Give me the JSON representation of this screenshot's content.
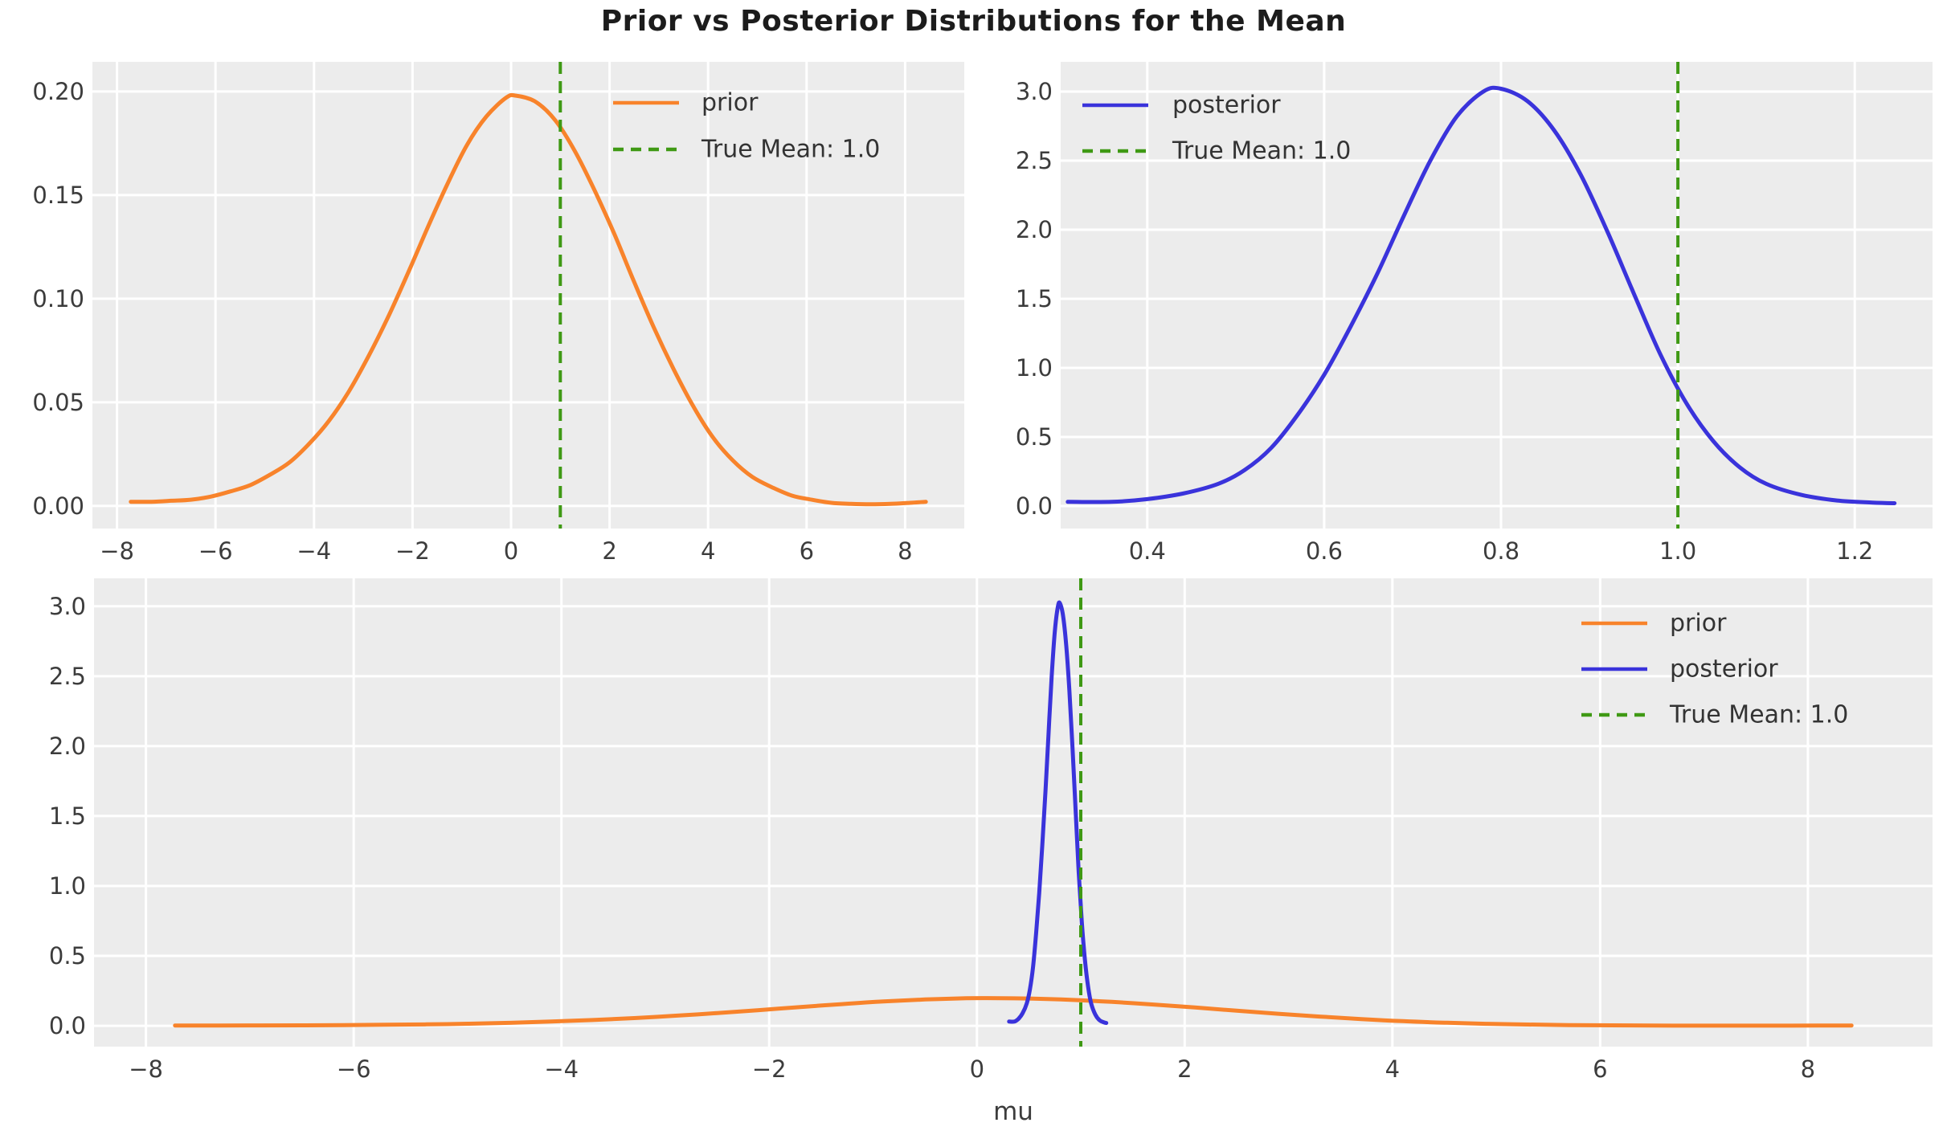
{
  "figure": {
    "title": "Prior vs Posterior Distributions for the Mean",
    "xlabel_bottom": "mu",
    "colors": {
      "prior": "#F8832B",
      "posterior": "#3A33DB",
      "true_mean": "#3F9914",
      "plot_bg": "#ECECEC",
      "grid": "#FFFFFF",
      "tick_text": "#3C3C3C",
      "legend_text": "#333333",
      "title_text": "#1C1C1C"
    }
  },
  "chart_data": [
    {
      "id": "prior-top-left",
      "type": "line",
      "title": "",
      "xlabel": "",
      "ylabel": "",
      "grid": true,
      "xlim": [
        -8.5,
        9.2
      ],
      "ylim": [
        -0.0109,
        0.2143
      ],
      "xticks": {
        "values": [
          -8,
          -6,
          -4,
          -2,
          0,
          2,
          4,
          6,
          8
        ],
        "labels": [
          "−8",
          "−6",
          "−4",
          "−2",
          "0",
          "2",
          "4",
          "6",
          "8"
        ]
      },
      "yticks": {
        "values": [
          0.0,
          0.05,
          0.1,
          0.15,
          0.2
        ],
        "labels": [
          "0.00",
          "0.05",
          "0.10",
          "0.15",
          "0.20"
        ]
      },
      "series": [
        {
          "name": "prior",
          "points_ref": "prior",
          "color_key": "prior"
        }
      ],
      "vline": {
        "x": 1.0,
        "label": "True Mean: 1.0",
        "color_key": "true_mean",
        "style": "dashed"
      },
      "legend": {
        "position": "upper-right",
        "entries": [
          {
            "sample": "line",
            "color_key": "prior",
            "label": "prior"
          },
          {
            "sample": "dashed",
            "color_key": "true_mean",
            "label": "True Mean: 1.0"
          }
        ]
      }
    },
    {
      "id": "posterior-top-right",
      "type": "line",
      "title": "",
      "xlabel": "",
      "ylabel": "",
      "grid": true,
      "xlim": [
        0.302,
        1.288
      ],
      "ylim": [
        -0.163,
        3.215
      ],
      "xticks": {
        "values": [
          0.4,
          0.6,
          0.8,
          1.0,
          1.2
        ],
        "labels": [
          "0.4",
          "0.6",
          "0.8",
          "1.0",
          "1.2"
        ]
      },
      "yticks": {
        "values": [
          0.0,
          0.5,
          1.0,
          1.5,
          2.0,
          2.5,
          3.0
        ],
        "labels": [
          "0.0",
          "0.5",
          "1.0",
          "1.5",
          "2.0",
          "2.5",
          "3.0"
        ]
      },
      "series": [
        {
          "name": "posterior",
          "points_ref": "posterior",
          "color_key": "posterior"
        }
      ],
      "vline": {
        "x": 1.0,
        "label": "True Mean: 1.0",
        "color_key": "true_mean",
        "style": "dashed"
      },
      "legend": {
        "position": "upper-left",
        "entries": [
          {
            "sample": "line",
            "color_key": "posterior",
            "label": "posterior"
          },
          {
            "sample": "dashed",
            "color_key": "true_mean",
            "label": "True Mean: 1.0"
          }
        ]
      }
    },
    {
      "id": "combined-bottom",
      "type": "line",
      "title": "",
      "xlabel": "mu",
      "ylabel": "",
      "grid": true,
      "xlim": [
        -8.5,
        9.2
      ],
      "ylim": [
        -0.149,
        3.2
      ],
      "xticks": {
        "values": [
          -8,
          -6,
          -4,
          -2,
          0,
          2,
          4,
          6,
          8
        ],
        "labels": [
          "−8",
          "−6",
          "−4",
          "−2",
          "0",
          "2",
          "4",
          "6",
          "8"
        ]
      },
      "yticks": {
        "values": [
          0.0,
          0.5,
          1.0,
          1.5,
          2.0,
          2.5,
          3.0
        ],
        "labels": [
          "0.0",
          "0.5",
          "1.0",
          "1.5",
          "2.0",
          "2.5",
          "3.0"
        ]
      },
      "series": [
        {
          "name": "prior",
          "points_ref": "prior",
          "color_key": "prior"
        },
        {
          "name": "posterior",
          "points_ref": "posterior",
          "color_key": "posterior"
        }
      ],
      "vline": {
        "x": 1.0,
        "label": "True Mean: 1.0",
        "color_key": "true_mean",
        "style": "dashed"
      },
      "legend": {
        "position": "upper-right",
        "entries": [
          {
            "sample": "line",
            "color_key": "prior",
            "label": "prior"
          },
          {
            "sample": "line",
            "color_key": "posterior",
            "label": "posterior"
          },
          {
            "sample": "dashed",
            "color_key": "true_mean",
            "label": "True Mean: 1.0"
          }
        ]
      }
    }
  ],
  "series_points": {
    "prior": [
      [
        -7.72,
        0.002
      ],
      [
        -7.3,
        0.002
      ],
      [
        -6.9,
        0.0025
      ],
      [
        -6.5,
        0.003
      ],
      [
        -6.1,
        0.0045
      ],
      [
        -5.7,
        0.007
      ],
      [
        -5.3,
        0.01
      ],
      [
        -4.9,
        0.015
      ],
      [
        -4.5,
        0.021
      ],
      [
        -4.1,
        0.03
      ],
      [
        -3.7,
        0.041
      ],
      [
        -3.3,
        0.055
      ],
      [
        -2.9,
        0.072
      ],
      [
        -2.5,
        0.091
      ],
      [
        -2.1,
        0.112
      ],
      [
        -1.7,
        0.134
      ],
      [
        -1.3,
        0.155
      ],
      [
        -0.9,
        0.174
      ],
      [
        -0.5,
        0.188
      ],
      [
        -0.1,
        0.197
      ],
      [
        0.1,
        0.198
      ],
      [
        0.5,
        0.195
      ],
      [
        0.9,
        0.186
      ],
      [
        1.3,
        0.171
      ],
      [
        1.7,
        0.152
      ],
      [
        2.1,
        0.131
      ],
      [
        2.5,
        0.108
      ],
      [
        2.9,
        0.086
      ],
      [
        3.3,
        0.066
      ],
      [
        3.7,
        0.048
      ],
      [
        4.1,
        0.033
      ],
      [
        4.5,
        0.022
      ],
      [
        4.9,
        0.014
      ],
      [
        5.3,
        0.009
      ],
      [
        5.7,
        0.005
      ],
      [
        6.1,
        0.003
      ],
      [
        6.5,
        0.0015
      ],
      [
        6.9,
        0.001
      ],
      [
        7.3,
        0.0008
      ],
      [
        7.7,
        0.001
      ],
      [
        8.1,
        0.0015
      ],
      [
        8.42,
        0.002
      ]
    ],
    "posterior": [
      [
        0.31,
        0.03
      ],
      [
        0.36,
        0.03
      ],
      [
        0.4,
        0.05
      ],
      [
        0.44,
        0.09
      ],
      [
        0.48,
        0.16
      ],
      [
        0.51,
        0.26
      ],
      [
        0.54,
        0.42
      ],
      [
        0.57,
        0.66
      ],
      [
        0.6,
        0.95
      ],
      [
        0.63,
        1.3
      ],
      [
        0.66,
        1.68
      ],
      [
        0.69,
        2.1
      ],
      [
        0.72,
        2.5
      ],
      [
        0.75,
        2.82
      ],
      [
        0.78,
        3.0
      ],
      [
        0.8,
        3.02
      ],
      [
        0.83,
        2.93
      ],
      [
        0.86,
        2.72
      ],
      [
        0.89,
        2.4
      ],
      [
        0.92,
        1.99
      ],
      [
        0.95,
        1.54
      ],
      [
        0.98,
        1.1
      ],
      [
        1.01,
        0.74
      ],
      [
        1.04,
        0.47
      ],
      [
        1.07,
        0.28
      ],
      [
        1.1,
        0.16
      ],
      [
        1.14,
        0.08
      ],
      [
        1.18,
        0.04
      ],
      [
        1.22,
        0.025
      ],
      [
        1.245,
        0.02
      ]
    ]
  }
}
